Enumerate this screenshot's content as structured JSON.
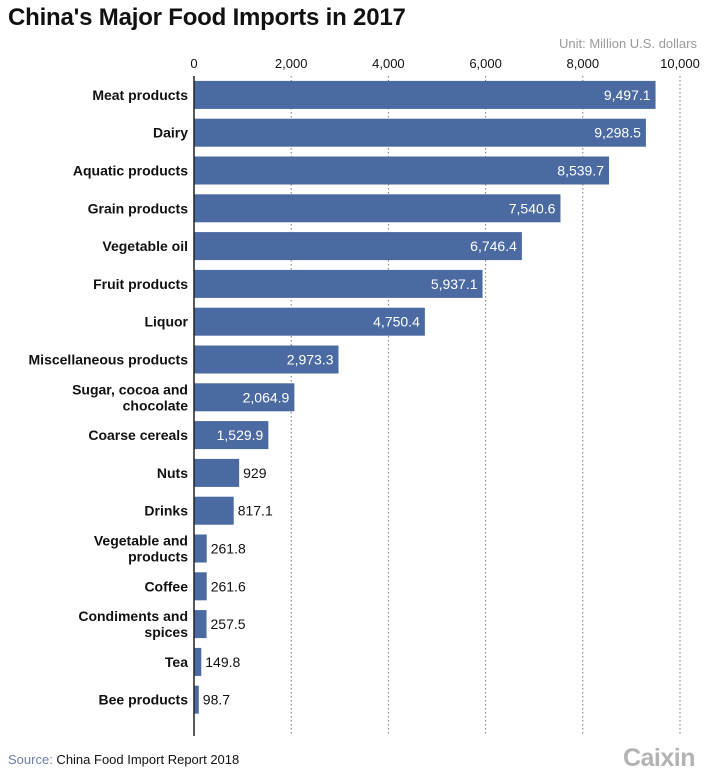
{
  "chart_data": {
    "type": "bar",
    "orientation": "horizontal",
    "title": "China's Major Food Imports in 2017",
    "unit": "Unit: Million U.S. dollars",
    "categories": [
      [
        "Meat products"
      ],
      [
        "Dairy"
      ],
      [
        "Aquatic products"
      ],
      [
        "Grain products"
      ],
      [
        "Vegetable oil"
      ],
      [
        "Fruit products"
      ],
      [
        "Liquor"
      ],
      [
        "Miscellaneous products"
      ],
      [
        "Sugar, cocoa and",
        "chocolate"
      ],
      [
        "Coarse cereals"
      ],
      [
        "Nuts"
      ],
      [
        "Drinks"
      ],
      [
        "Vegetable and",
        "products"
      ],
      [
        "Coffee"
      ],
      [
        "Condiments and",
        "spices"
      ],
      [
        "Tea"
      ],
      [
        "Bee products"
      ]
    ],
    "values": [
      9497.1,
      9298.5,
      8539.7,
      7540.6,
      6746.4,
      5937.1,
      4750.4,
      2973.3,
      2064.9,
      1529.9,
      929,
      817.1,
      261.8,
      261.6,
      257.5,
      149.8,
      98.7
    ],
    "value_labels": [
      "9,497.1",
      "9,298.5",
      "8,539.7",
      "7,540.6",
      "6,746.4",
      "5,937.1",
      "4,750.4",
      "2,973.3",
      "2,064.9",
      "1,529.9",
      "929",
      "817.1",
      "261.8",
      "261.6",
      "257.5",
      "149.8",
      "98.7"
    ],
    "xlim": [
      0,
      10000
    ],
    "x_ticks": [
      0,
      2000,
      4000,
      6000,
      8000,
      10000
    ],
    "x_tick_labels": [
      "0",
      "2,000",
      "4,000",
      "6,000",
      "8,000",
      "10,000"
    ],
    "x_axis_position": "top",
    "grid": "vertical dotted",
    "bar_color": "#4a6aa1"
  },
  "footer": {
    "source_label": "Source:",
    "source_text": " China Food Import Report 2018",
    "logo": "Caixin"
  }
}
